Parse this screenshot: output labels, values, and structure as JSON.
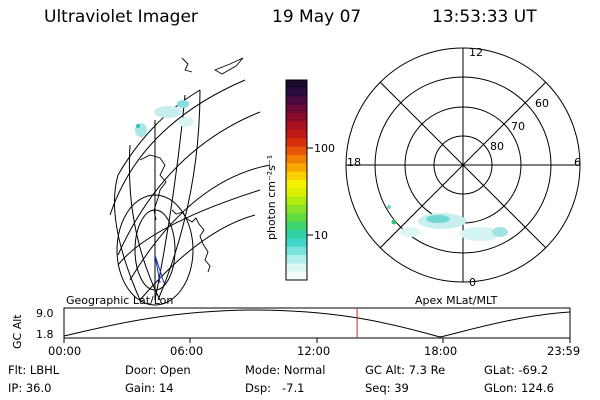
{
  "header": {
    "instrument": "Ultraviolet Imager",
    "date": "19 May 07",
    "time": "13:53:33 UT"
  },
  "colorbar": {
    "unit_label": "photon cm⁻²s⁻¹",
    "ticks": [
      "100",
      "10"
    ],
    "colors": [
      "#1a0a2e",
      "#2b0a3d",
      "#4a0a3f",
      "#6a0a35",
      "#8b0a2a",
      "#a8101e",
      "#c01a14",
      "#d8300c",
      "#e85508",
      "#f28004",
      "#f7a800",
      "#fbd000",
      "#f5f000",
      "#d8f000",
      "#b0ec10",
      "#88e428",
      "#60dc40",
      "#40d470",
      "#30d0a0",
      "#40d8c8",
      "#78e4dc",
      "#b0eeea",
      "#dcf6f4",
      "#f4fcfb"
    ]
  },
  "polar_plot": {
    "mlt_labels": {
      "top": "12",
      "left": "18",
      "right": "6",
      "bottom": "0"
    },
    "lat_labels": [
      "60",
      "70",
      "80"
    ]
  },
  "timeline": {
    "ylabel": "GC Alt",
    "ymax": "9.0",
    "ymin": "1.8",
    "left_caption": "Geographic Lat/Lon",
    "right_caption": "Apex MLat/MLT",
    "ticks": [
      "00:00",
      "06:00",
      "12:00",
      "18:00",
      "23:59"
    ],
    "current_time_hours": 13.9
  },
  "info": {
    "flt": "Flt: LBHL",
    "ip": "IP: 36.0",
    "door": "Door: Open",
    "gain": "Gain: 14",
    "mode": "Mode: Normal",
    "dsp": "Dsp:   -7.1",
    "gcalt": "GC Alt: 7.3 Re",
    "seq": "Seq: 39",
    "glat": "GLat: -69.2",
    "glon": "GLon: 124.6"
  }
}
